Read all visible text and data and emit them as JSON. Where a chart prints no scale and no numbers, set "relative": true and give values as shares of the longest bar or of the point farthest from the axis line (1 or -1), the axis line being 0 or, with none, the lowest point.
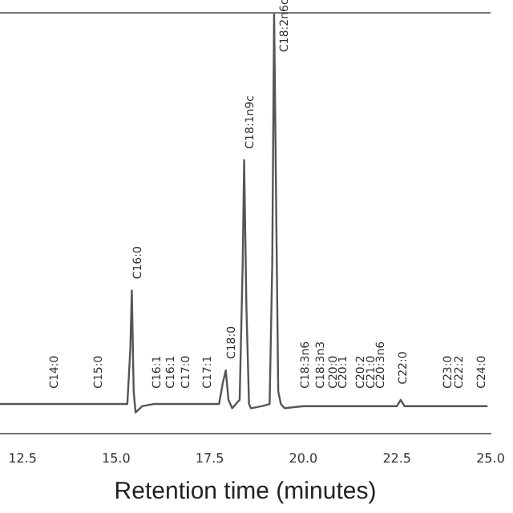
{
  "chart_data": {
    "type": "line",
    "relative": true,
    "xlabel": "Retention time (minutes)",
    "xlim": [
      11.9,
      25.0
    ],
    "xticks": [
      12.5,
      {
        "value": 15,
        "label": "15.0"
      },
      17.5,
      {
        "value": 20,
        "label": "20.0"
      },
      22.5,
      {
        "value": 25,
        "label": "25.0"
      }
    ],
    "grid": false,
    "legend": false,
    "marker": "none",
    "line_style": "solid",
    "series": [
      {
        "color": "#555555",
        "x": [
          11.9,
          15.3,
          15.38,
          15.42,
          15.47,
          15.52,
          15.7,
          16.0,
          17.75,
          17.85,
          17.93,
          18.0,
          18.1,
          18.3,
          18.38,
          18.42,
          18.48,
          18.55,
          18.6,
          18.9,
          19.1,
          19.17,
          19.22,
          19.28,
          19.33,
          19.4,
          19.5,
          20.0,
          22.5,
          22.6,
          22.7,
          24.9
        ],
        "values": [
          0.07,
          0.07,
          0.2,
          0.34,
          0.1,
          0.05,
          0.065,
          0.07,
          0.07,
          0.12,
          0.15,
          0.08,
          0.06,
          0.08,
          0.4,
          0.65,
          0.3,
          0.07,
          0.06,
          0.065,
          0.07,
          0.4,
          1,
          0.5,
          0.1,
          0.07,
          0.06,
          0.065,
          0.065,
          0.08,
          0.065,
          0.065
        ]
      }
    ],
    "annotations": [
      {
        "text": "C14:0",
        "x": 13.2,
        "y": 0.08
      },
      {
        "text": "C15:0",
        "x": 14.36,
        "y": 0.08
      },
      {
        "text": "C16:0",
        "x": 15.42,
        "y": 0.34
      },
      {
        "text": "C16:1",
        "x": 15.94,
        "y": 0.08
      },
      {
        "text": "C16:1",
        "x": 16.3,
        "y": 0.08
      },
      {
        "text": "C17:0",
        "x": 16.7,
        "y": 0.08
      },
      {
        "text": "C17:1",
        "x": 17.28,
        "y": 0.08
      },
      {
        "text": "C18:0",
        "x": 17.93,
        "y": 0.15
      },
      {
        "text": "C18:1n9c",
        "x": 18.42,
        "y": 0.65
      },
      {
        "text": "C18:2n6c",
        "x": 19.34,
        "y": 0.88
      },
      {
        "text": "C18:3n6",
        "x": 19.9,
        "y": 0.08
      },
      {
        "text": "C18:3n3",
        "x": 20.3,
        "y": 0.08
      },
      {
        "text": "C20:0",
        "x": 20.64,
        "y": 0.08
      },
      {
        "text": "C20:1",
        "x": 20.9,
        "y": 0.08
      },
      {
        "text": "C20:2",
        "x": 21.37,
        "y": 0.08
      },
      {
        "text": "C21:0",
        "x": 21.65,
        "y": 0.08
      },
      {
        "text": "C20:3n6",
        "x": 21.9,
        "y": 0.08
      },
      {
        "text": "C22:0",
        "x": 22.5,
        "y": 0.09
      },
      {
        "text": "C23:0",
        "x": 23.7,
        "y": 0.08
      },
      {
        "text": "C22:2",
        "x": 24.0,
        "y": 0.08
      },
      {
        "text": "C24:0",
        "x": 24.6,
        "y": 0.08
      }
    ]
  }
}
